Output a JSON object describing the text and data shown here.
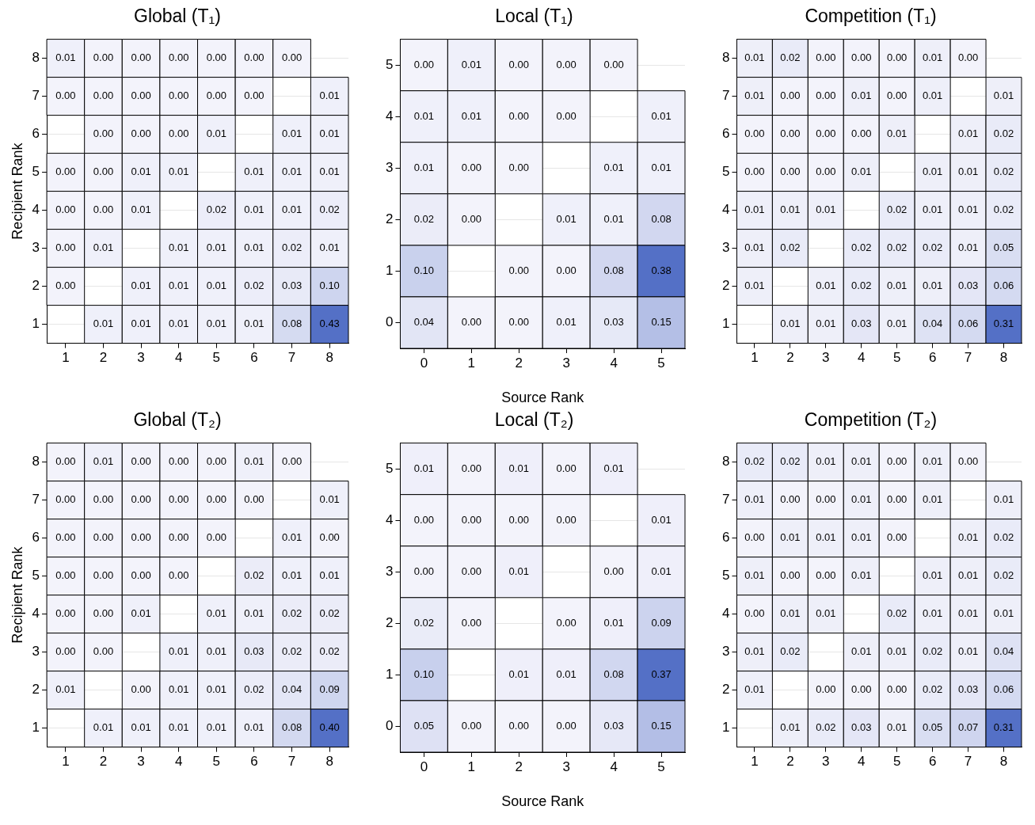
{
  "chart_data": [
    {
      "type": "heatmap",
      "title": "Global (T₁)",
      "ylabel": "Recipient Rank",
      "grid": "y",
      "categories": [
        "1",
        "2",
        "3",
        "4",
        "5",
        "6",
        "7",
        "8"
      ],
      "y_categories": [
        "8",
        "7",
        "6",
        "5",
        "4",
        "3",
        "2",
        "1"
      ],
      "cells": [
        [
          0.01,
          0.0,
          0.0,
          0.0,
          0.0,
          0.0,
          0.0,
          null
        ],
        [
          0.0,
          0.0,
          0.0,
          0.0,
          0.0,
          0.0,
          null,
          0.01
        ],
        [
          null,
          0.0,
          0.0,
          0.0,
          0.01,
          null,
          0.01,
          0.01
        ],
        [
          0.0,
          0.0,
          0.01,
          0.01,
          null,
          0.01,
          0.01,
          0.01
        ],
        [
          0.0,
          0.0,
          0.01,
          null,
          0.02,
          0.01,
          0.01,
          0.02
        ],
        [
          0.0,
          0.01,
          null,
          0.01,
          0.01,
          0.01,
          0.02,
          0.01
        ],
        [
          0.0,
          null,
          0.01,
          0.01,
          0.01,
          0.02,
          0.03,
          0.1
        ],
        [
          null,
          0.01,
          0.01,
          0.01,
          0.01,
          0.01,
          0.08,
          0.43
        ]
      ],
      "cell_labels": [
        [
          "0.01",
          "0.00",
          "0.00",
          "0.00",
          "0.00",
          "0.00",
          "0.00",
          null
        ],
        [
          "0.00",
          "0.00",
          "0.00",
          "0.00",
          "0.00",
          "0.00",
          null,
          "0.01"
        ],
        [
          null,
          "0.00",
          "0.00",
          "0.00",
          "0.01",
          null,
          "0.01",
          "0.01"
        ],
        [
          "0.00",
          "0.00",
          "0.01",
          "0.01",
          null,
          "0.01",
          "0.01",
          "0.01"
        ],
        [
          "0.00",
          "0.00",
          "0.01",
          null,
          "0.02",
          "0.01",
          "0.01",
          "0.02"
        ],
        [
          "0.00",
          "0.01",
          null,
          "0.01",
          "0.01",
          "0.01",
          "0.02",
          "0.01"
        ],
        [
          "0.00",
          null,
          "0.01",
          "0.01",
          "0.01",
          "0.02",
          "0.03",
          "0.10"
        ],
        [
          null,
          "0.01",
          "0.01",
          "0.01",
          "0.01",
          "0.01",
          "0.08",
          "0.43"
        ]
      ]
    },
    {
      "type": "heatmap",
      "title": "Local (T₁)",
      "xlabel": "Source Rank",
      "grid": "y",
      "categories": [
        "0",
        "1",
        "2",
        "3",
        "4",
        "5"
      ],
      "y_categories": [
        "5",
        "4",
        "3",
        "2",
        "1",
        "0"
      ],
      "cells": [
        [
          0.0,
          0.01,
          0.0,
          0.0,
          0.0,
          null
        ],
        [
          0.01,
          0.01,
          0.0,
          0.0,
          null,
          0.01
        ],
        [
          0.01,
          0.0,
          0.0,
          null,
          0.01,
          0.01
        ],
        [
          0.02,
          0.0,
          null,
          0.01,
          0.01,
          0.08
        ],
        [
          0.1,
          null,
          0.0,
          0.0,
          0.08,
          0.38
        ],
        [
          0.04,
          0.0,
          0.0,
          0.01,
          0.03,
          0.15
        ]
      ],
      "cell_labels": [
        [
          "0.00",
          "0.01",
          "0.00",
          "0.00",
          "0.00",
          null
        ],
        [
          "0.01",
          "0.01",
          "0.00",
          "0.00",
          null,
          "0.01"
        ],
        [
          "0.01",
          "0.00",
          "0.00",
          null,
          "0.01",
          "0.01"
        ],
        [
          "0.02",
          "0.00",
          null,
          "0.01",
          "0.01",
          "0.08"
        ],
        [
          "0.10",
          null,
          "0.00",
          "0.00",
          "0.08",
          "0.38"
        ],
        [
          "0.04",
          "0.00",
          "0.00",
          "0.01",
          "0.03",
          "0.15"
        ]
      ]
    },
    {
      "type": "heatmap",
      "title": "Competition (T₁)",
      "grid": "y",
      "categories": [
        "1",
        "2",
        "3",
        "4",
        "5",
        "6",
        "7",
        "8"
      ],
      "y_categories": [
        "8",
        "7",
        "6",
        "5",
        "4",
        "3",
        "2",
        "1"
      ],
      "cells": [
        [
          0.01,
          0.02,
          0.0,
          0.0,
          0.0,
          0.01,
          0.0,
          null
        ],
        [
          0.01,
          0.0,
          0.0,
          0.01,
          0.0,
          0.01,
          null,
          0.01
        ],
        [
          0.0,
          0.0,
          0.0,
          0.0,
          0.01,
          null,
          0.01,
          0.02
        ],
        [
          0.0,
          0.0,
          0.0,
          0.01,
          null,
          0.01,
          0.01,
          0.02
        ],
        [
          0.01,
          0.01,
          0.01,
          null,
          0.02,
          0.01,
          0.01,
          0.02
        ],
        [
          0.01,
          0.02,
          null,
          0.02,
          0.02,
          0.02,
          0.01,
          0.05
        ],
        [
          0.01,
          null,
          0.01,
          0.02,
          0.01,
          0.01,
          0.03,
          0.06
        ],
        [
          null,
          0.01,
          0.01,
          0.03,
          0.01,
          0.04,
          0.06,
          0.31
        ]
      ],
      "cell_labels": [
        [
          "0.01",
          "0.02",
          "0.00",
          "0.00",
          "0.00",
          "0.01",
          "0.00",
          null
        ],
        [
          "0.01",
          "0.00",
          "0.00",
          "0.01",
          "0.00",
          "0.01",
          null,
          "0.01"
        ],
        [
          "0.00",
          "0.00",
          "0.00",
          "0.00",
          "0.01",
          null,
          "0.01",
          "0.02"
        ],
        [
          "0.00",
          "0.00",
          "0.00",
          "0.01",
          null,
          "0.01",
          "0.01",
          "0.02"
        ],
        [
          "0.01",
          "0.01",
          "0.01",
          null,
          "0.02",
          "0.01",
          "0.01",
          "0.02"
        ],
        [
          "0.01",
          "0.02",
          null,
          "0.02",
          "0.02",
          "0.02",
          "0.01",
          "0.05"
        ],
        [
          "0.01",
          null,
          "0.01",
          "0.02",
          "0.01",
          "0.01",
          "0.03",
          "0.06"
        ],
        [
          null,
          "0.01",
          "0.01",
          "0.03",
          "0.01",
          "0.04",
          "0.06",
          "0.31"
        ]
      ]
    },
    {
      "type": "heatmap",
      "title": "Global (T₂)",
      "ylabel": "Recipient Rank",
      "grid": "y",
      "categories": [
        "1",
        "2",
        "3",
        "4",
        "5",
        "6",
        "7",
        "8"
      ],
      "y_categories": [
        "8",
        "7",
        "6",
        "5",
        "4",
        "3",
        "2",
        "1"
      ],
      "cells": [
        [
          0.0,
          0.01,
          0.0,
          0.0,
          0.0,
          0.01,
          0.0,
          null
        ],
        [
          0.0,
          0.0,
          0.0,
          0.0,
          0.0,
          0.0,
          null,
          0.01
        ],
        [
          0.0,
          0.0,
          0.0,
          0.0,
          0.0,
          null,
          0.01,
          0.0
        ],
        [
          0.0,
          0.0,
          0.0,
          0.0,
          null,
          0.02,
          0.01,
          0.01
        ],
        [
          0.0,
          0.0,
          0.01,
          null,
          0.01,
          0.01,
          0.02,
          0.02
        ],
        [
          0.0,
          0.0,
          null,
          0.01,
          0.01,
          0.03,
          0.02,
          0.02
        ],
        [
          0.01,
          null,
          0.0,
          0.01,
          0.01,
          0.02,
          0.04,
          0.09
        ],
        [
          null,
          0.01,
          0.01,
          0.01,
          0.01,
          0.01,
          0.08,
          0.4
        ]
      ],
      "cell_labels": [
        [
          "0.00",
          "0.01",
          "0.00",
          "0.00",
          "0.00",
          "0.01",
          "0.00",
          null
        ],
        [
          "0.00",
          "0.00",
          "0.00",
          "0.00",
          "0.00",
          "0.00",
          null,
          "0.01"
        ],
        [
          "0.00",
          "0.00",
          "0.00",
          "0.00",
          "0.00",
          null,
          "0.01",
          "0.00"
        ],
        [
          "0.00",
          "0.00",
          "0.00",
          "0.00",
          null,
          "0.02",
          "0.01",
          "0.01"
        ],
        [
          "0.00",
          "0.00",
          "0.01",
          null,
          "0.01",
          "0.01",
          "0.02",
          "0.02"
        ],
        [
          "0.00",
          "0.00",
          null,
          "0.01",
          "0.01",
          "0.03",
          "0.02",
          "0.02"
        ],
        [
          "0.01",
          null,
          "0.00",
          "0.01",
          "0.01",
          "0.02",
          "0.04",
          "0.09"
        ],
        [
          null,
          "0.01",
          "0.01",
          "0.01",
          "0.01",
          "0.01",
          "0.08",
          "0.40"
        ]
      ]
    },
    {
      "type": "heatmap",
      "title": "Local (T₂)",
      "xlabel": "Source Rank",
      "grid": "y",
      "categories": [
        "0",
        "1",
        "2",
        "3",
        "4",
        "5"
      ],
      "y_categories": [
        "5",
        "4",
        "3",
        "2",
        "1",
        "0"
      ],
      "cells": [
        [
          0.01,
          0.0,
          0.01,
          0.0,
          0.01,
          null
        ],
        [
          0.0,
          0.0,
          0.0,
          0.0,
          null,
          0.01
        ],
        [
          0.0,
          0.0,
          0.01,
          null,
          0.0,
          0.01
        ],
        [
          0.02,
          0.0,
          null,
          0.0,
          0.01,
          0.09
        ],
        [
          0.1,
          null,
          0.01,
          0.01,
          0.08,
          0.37
        ],
        [
          0.05,
          0.0,
          0.0,
          0.0,
          0.03,
          0.15
        ]
      ],
      "cell_labels": [
        [
          "0.01",
          "0.00",
          "0.01",
          "0.00",
          "0.01",
          null
        ],
        [
          "0.00",
          "0.00",
          "0.00",
          "0.00",
          null,
          "0.01"
        ],
        [
          "0.00",
          "0.00",
          "0.01",
          null,
          "0.00",
          "0.01"
        ],
        [
          "0.02",
          "0.00",
          null,
          "0.00",
          "0.01",
          "0.09"
        ],
        [
          "0.10",
          null,
          "0.01",
          "0.01",
          "0.08",
          "0.37"
        ],
        [
          "0.05",
          "0.00",
          "0.00",
          "0.00",
          "0.03",
          "0.15"
        ]
      ]
    },
    {
      "type": "heatmap",
      "title": "Competition (T₂)",
      "grid": "y",
      "categories": [
        "1",
        "2",
        "3",
        "4",
        "5",
        "6",
        "7",
        "8"
      ],
      "y_categories": [
        "8",
        "7",
        "6",
        "5",
        "4",
        "3",
        "2",
        "1"
      ],
      "cells": [
        [
          0.02,
          0.02,
          0.01,
          0.01,
          0.0,
          0.01,
          0.0,
          null
        ],
        [
          0.01,
          0.0,
          0.0,
          0.01,
          0.0,
          0.01,
          null,
          0.01
        ],
        [
          0.0,
          0.01,
          0.01,
          0.01,
          0.0,
          null,
          0.01,
          0.02
        ],
        [
          0.01,
          0.0,
          0.0,
          0.01,
          null,
          0.01,
          0.01,
          0.02
        ],
        [
          0.0,
          0.01,
          0.01,
          null,
          0.02,
          0.01,
          0.01,
          0.01
        ],
        [
          0.01,
          0.02,
          null,
          0.01,
          0.01,
          0.02,
          0.01,
          0.04
        ],
        [
          0.01,
          null,
          0.0,
          0.0,
          0.0,
          0.02,
          0.03,
          0.06
        ],
        [
          null,
          0.01,
          0.02,
          0.03,
          0.01,
          0.05,
          0.07,
          0.31
        ]
      ],
      "cell_labels": [
        [
          "0.02",
          "0.02",
          "0.01",
          "0.01",
          "0.00",
          "0.01",
          "0.00",
          null
        ],
        [
          "0.01",
          "0.00",
          "0.00",
          "0.01",
          "0.00",
          "0.01",
          null,
          "0.01"
        ],
        [
          "0.00",
          "0.01",
          "0.01",
          "0.01",
          "0.00",
          null,
          "0.01",
          "0.02"
        ],
        [
          "0.01",
          "0.00",
          "0.00",
          "0.01",
          null,
          "0.01",
          "0.01",
          "0.02"
        ],
        [
          "0.00",
          "0.01",
          "0.01",
          null,
          "0.02",
          "0.01",
          "0.01",
          "0.01"
        ],
        [
          "0.01",
          "0.02",
          null,
          "0.01",
          "0.01",
          "0.02",
          "0.01",
          "0.04"
        ],
        [
          "0.01",
          null,
          "0.00",
          "0.00",
          "0.00",
          "0.02",
          "0.03",
          "0.06"
        ],
        [
          null,
          "0.01",
          "0.02",
          "0.03",
          "0.01",
          "0.05",
          "0.07",
          "0.31"
        ]
      ]
    }
  ]
}
